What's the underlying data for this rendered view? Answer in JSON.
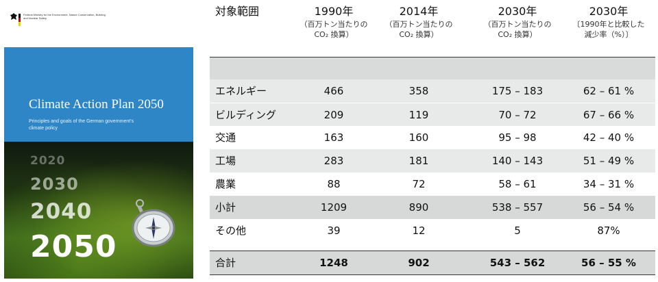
{
  "cover": {
    "ministry_text": "Federal Ministry for the Environment, Nature Conservation, Building and Nuclear Safety",
    "title": "Climate Action Plan 2050",
    "subtitle": "Principles and goals of the German government's climate policy",
    "years": [
      "2020",
      "2030",
      "2040",
      "2050"
    ],
    "colors": {
      "band": "#2f86c6",
      "flag_black": "#000000",
      "flag_red": "#dd0000",
      "flag_gold": "#ffce00"
    }
  },
  "table": {
    "header": {
      "scope": "対象範囲",
      "col1_main": "1990年",
      "col1_sub1": "（百万トン当たりの",
      "col1_sub2": "CO₂ 換算）",
      "col2_main": "2014年",
      "col2_sub1": "（百万トン当たりの",
      "col2_sub2": "CO₂ 換算）",
      "col3_main": "2030年",
      "col3_sub1": "（百万トン当たりの",
      "col3_sub2": "CO₂ 換算）",
      "col4_main": "2030年",
      "col4_sub1": "〔1990年と比較した",
      "col4_sub2": "減少率（%）〕"
    },
    "rows": [
      {
        "label": "エネルギー",
        "v1990": "466",
        "v2014": "358",
        "v2030": "175 – 183",
        "pct": "62 – 61 %"
      },
      {
        "label": "ビルディング",
        "v1990": "209",
        "v2014": "119",
        "v2030": "70 – 72",
        "pct": "67 – 66 %"
      },
      {
        "label": "交通",
        "v1990": "163",
        "v2014": "160",
        "v2030": "95 – 98",
        "pct": "42 – 40 %"
      },
      {
        "label": "工場",
        "v1990": "283",
        "v2014": "181",
        "v2030": "140 – 143",
        "pct": "51 – 49 %"
      },
      {
        "label": "農業",
        "v1990": "88",
        "v2014": "72",
        "v2030": "58 – 61",
        "pct": "34 – 31 %"
      },
      {
        "label": "小計",
        "v1990": "1209",
        "v2014": "890",
        "v2030": "538 – 557",
        "pct": "56 – 54 %"
      },
      {
        "label": "その他",
        "v1990": "39",
        "v2014": "12",
        "v2030": "5",
        "pct": "87%"
      },
      {
        "label": "合計",
        "v1990": "1248",
        "v2014": "902",
        "v2030": "543 – 562",
        "pct": "56 – 55 %"
      }
    ],
    "colors": {
      "shade": "#e8e9e9",
      "subtotal": "#d7d9d9",
      "rule": "#333333"
    }
  }
}
